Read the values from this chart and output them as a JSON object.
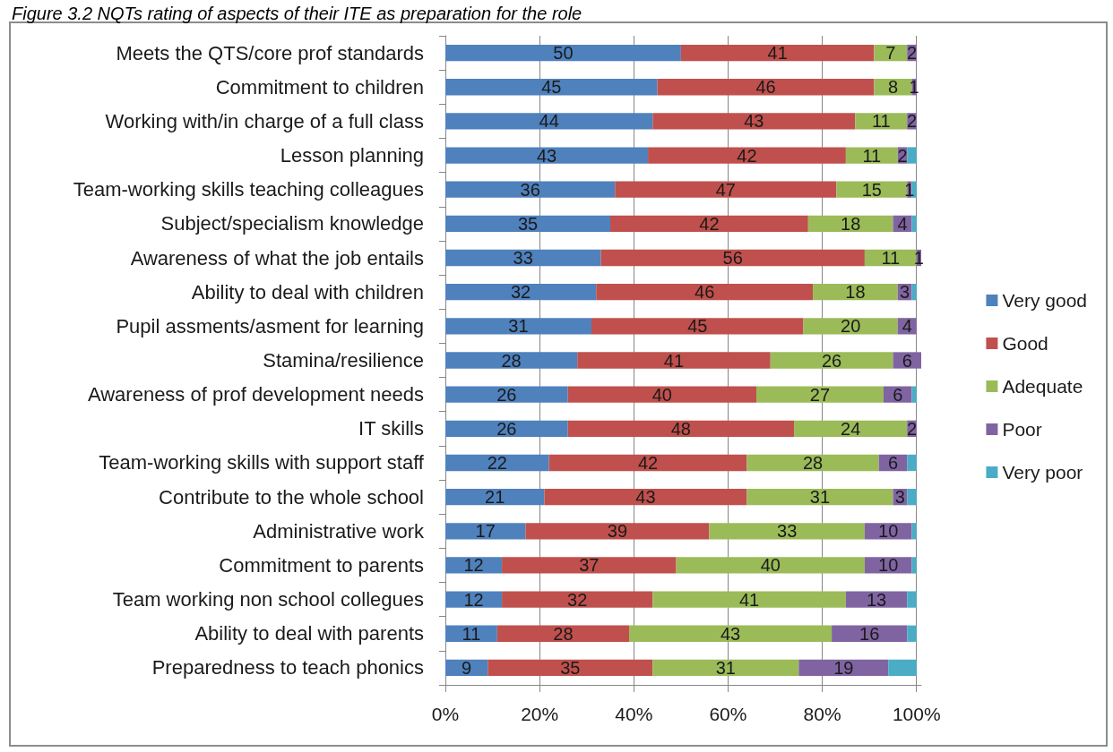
{
  "chart_data": {
    "type": "bar",
    "title": "Figure 3.2 NQTs rating of aspects of their ITE as preparation for the role",
    "orientation": "horizontal",
    "stacked": true,
    "categories": [
      "Meets the QTS/core prof standards",
      "Commitment to children",
      "Working with/in charge of a full class",
      "Lesson planning",
      "Team-working skills teaching colleagues",
      "Subject/specialism knowledge",
      "Awareness of what the job entails",
      "Ability to deal with children",
      "Pupil assments/asment for learning",
      "Stamina/resilience",
      "Awareness of prof development needs",
      "IT skills",
      "Team-working skills with support staff",
      "Contribute to the whole school",
      "Administrative work",
      "Commitment to parents",
      "Team working non school collegues",
      "Ability to deal with parents",
      "Preparedness to teach phonics"
    ],
    "series": [
      {
        "name": "Very good",
        "color": "#4f81bd",
        "values": [
          50,
          45,
          44,
          43,
          36,
          35,
          33,
          32,
          31,
          28,
          26,
          26,
          22,
          21,
          17,
          12,
          12,
          11,
          9
        ],
        "value_labels": [
          "50",
          "45",
          "44",
          "43",
          "36",
          "35",
          "33",
          "32",
          "31",
          "28",
          "26",
          "26",
          "22",
          "21",
          "17",
          "12",
          "12",
          "11",
          "9"
        ]
      },
      {
        "name": "Good",
        "color": "#c0504d",
        "values": [
          41,
          46,
          43,
          42,
          47,
          42,
          56,
          46,
          45,
          41,
          40,
          48,
          42,
          43,
          39,
          37,
          32,
          28,
          35
        ],
        "value_labels": [
          "41",
          "46",
          "43",
          "42",
          "47",
          "42",
          "56",
          "46",
          "45",
          "41",
          "40",
          "48",
          "42",
          "43",
          "39",
          "37",
          "32",
          "28",
          "35"
        ]
      },
      {
        "name": "Adequate",
        "color": "#9bbb59",
        "values": [
          7,
          8,
          11,
          11,
          15,
          18,
          11,
          18,
          20,
          26,
          27,
          24,
          28,
          31,
          33,
          40,
          41,
          43,
          31
        ],
        "value_labels": [
          "7",
          "8",
          "11",
          "11",
          "15",
          "18",
          "11",
          "18",
          "20",
          "26",
          "27",
          "24",
          "28",
          "31",
          "33",
          "40",
          "41",
          "43",
          "31"
        ]
      },
      {
        "name": "Poor",
        "color": "#8064a2",
        "values": [
          2,
          1,
          2,
          2,
          1,
          4,
          1,
          3,
          4,
          6,
          6,
          2,
          6,
          3,
          10,
          10,
          13,
          16,
          19
        ],
        "value_labels": [
          "2",
          "1",
          "2",
          "2",
          "1",
          "4",
          "1",
          "3",
          "4",
          "6",
          "6",
          "2",
          "6",
          "3",
          "10",
          "10",
          "13",
          "16",
          "19"
        ]
      },
      {
        "name": "Very poor",
        "color": "#4bacc6",
        "values": [
          0,
          0,
          0,
          2,
          1,
          1,
          0,
          1,
          0,
          0,
          1,
          0,
          2,
          2,
          1,
          1,
          2,
          2,
          6
        ]
      }
    ],
    "xlim": [
      0,
      101
    ],
    "xticks": [
      {
        "value": 0,
        "label": "0%"
      },
      {
        "value": 20,
        "label": "20%"
      },
      {
        "value": 40,
        "label": "40%"
      },
      {
        "value": 60,
        "label": "60%"
      },
      {
        "value": 80,
        "label": "80%"
      },
      {
        "value": 100,
        "label": "100%"
      }
    ],
    "grid": "x",
    "legend": "right"
  }
}
